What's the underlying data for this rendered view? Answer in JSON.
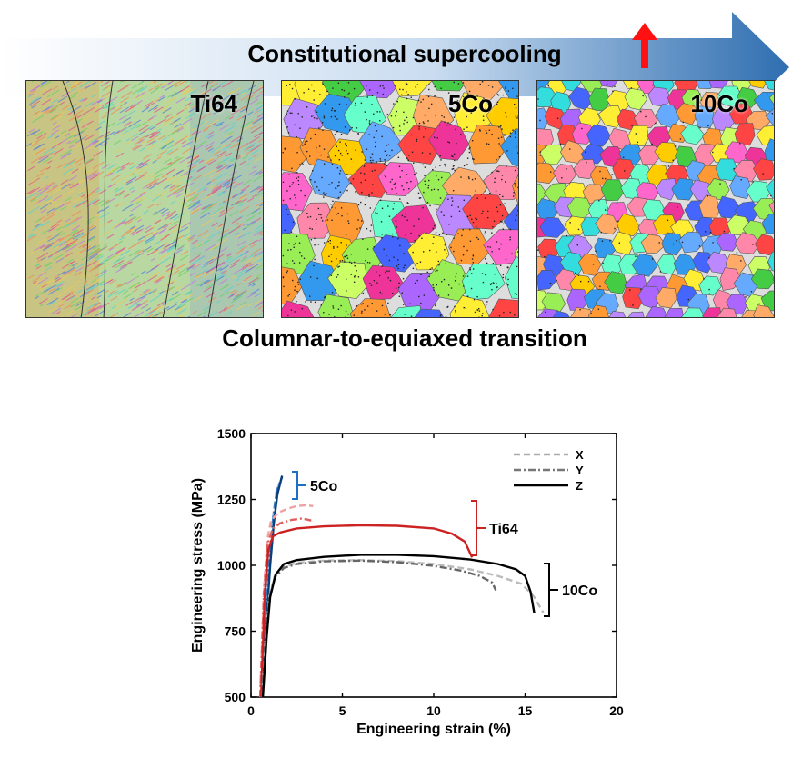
{
  "banner": {
    "title": "Constitutional supercooling",
    "gradient_start": "#ffffff",
    "gradient_end": "#2f6eb0",
    "indicator_icon": "red-up-arrow",
    "indicator_color": "#ff1111"
  },
  "panels": [
    {
      "label": "Ti64",
      "style": "columnar"
    },
    {
      "label": "5Co",
      "style": "coarse-equiaxed"
    },
    {
      "label": "10Co",
      "style": "fine-equiaxed"
    }
  ],
  "caption": "Columnar-to-equiaxed transition",
  "chart_data": {
    "type": "line",
    "title": "",
    "xlabel": "Engineering strain (%)",
    "ylabel": "Engineering stress (MPa)",
    "xlim": [
      0,
      20
    ],
    "ylim": [
      500,
      1500
    ],
    "xticks": [
      0,
      5,
      10,
      15,
      20
    ],
    "yticks": [
      500,
      750,
      1000,
      1250,
      1500
    ],
    "grid": false,
    "legend": {
      "position": "top-right",
      "entries": [
        {
          "label": "X",
          "dash": "dashed",
          "color": "#aaaaaa"
        },
        {
          "label": "Y",
          "dash": "dash-dot",
          "color": "#777777"
        },
        {
          "label": "Z",
          "dash": "solid",
          "color": "#000000"
        }
      ]
    },
    "groups": [
      {
        "label": "5Co",
        "bracket_color": "#1f6fc4"
      },
      {
        "label": "Ti64",
        "bracket_color": "#cc2222"
      },
      {
        "label": "10Co",
        "bracket_color": "#000000"
      }
    ],
    "series": [
      {
        "alloy": "5Co",
        "direction": "X",
        "color": "#8ab4de",
        "dash": "dashed",
        "x": [
          0.5,
          0.8,
          1.0,
          1.2,
          1.4,
          1.6
        ],
        "y": [
          500,
          800,
          1020,
          1180,
          1280,
          1320
        ]
      },
      {
        "alloy": "5Co",
        "direction": "Y",
        "color": "#3a78c0",
        "dash": "dash-dot",
        "x": [
          0.5,
          0.8,
          1.0,
          1.2,
          1.4,
          1.7
        ],
        "y": [
          500,
          790,
          1010,
          1170,
          1280,
          1335
        ]
      },
      {
        "alloy": "5Co",
        "direction": "Z",
        "color": "#0b3f7a",
        "dash": "solid",
        "x": [
          0.55,
          0.85,
          1.05,
          1.25,
          1.45,
          1.7
        ],
        "y": [
          500,
          790,
          1000,
          1160,
          1270,
          1340
        ]
      },
      {
        "alloy": "Ti64",
        "direction": "X",
        "color": "#f0a0a0",
        "dash": "dashed",
        "x": [
          0.5,
          0.7,
          0.9,
          1.1,
          1.5,
          2.0,
          2.5,
          3.0,
          3.4
        ],
        "y": [
          500,
          900,
          1100,
          1170,
          1200,
          1215,
          1225,
          1228,
          1225
        ]
      },
      {
        "alloy": "Ti64",
        "direction": "Y",
        "color": "#e06060",
        "dash": "dash-dot",
        "x": [
          0.5,
          0.7,
          0.9,
          1.2,
          1.6,
          2.2,
          2.8,
          3.3
        ],
        "y": [
          500,
          880,
          1080,
          1140,
          1160,
          1172,
          1178,
          1170
        ]
      },
      {
        "alloy": "Ti64",
        "direction": "Z",
        "color": "#cc2222",
        "dash": "solid",
        "x": [
          0.55,
          0.75,
          0.95,
          1.2,
          1.6,
          2.5,
          4.0,
          6.0,
          8.0,
          10.0,
          11.0,
          11.7,
          12.1
        ],
        "y": [
          500,
          880,
          1060,
          1110,
          1125,
          1140,
          1148,
          1152,
          1150,
          1140,
          1120,
          1090,
          1030
        ]
      },
      {
        "alloy": "10Co",
        "direction": "X",
        "color": "#bbbbbb",
        "dash": "dashed",
        "x": [
          0.6,
          0.8,
          1.0,
          1.3,
          1.8,
          2.5,
          4.0,
          6.0,
          8.0,
          10.0,
          12.0,
          13.5,
          14.8,
          15.5,
          16.0
        ],
        "y": [
          500,
          720,
          880,
          960,
          995,
          1010,
          1018,
          1020,
          1016,
          1005,
          985,
          960,
          930,
          880,
          820
        ]
      },
      {
        "alloy": "10Co",
        "direction": "Y",
        "color": "#666666",
        "dash": "dash-dot",
        "x": [
          0.6,
          0.8,
          1.0,
          1.3,
          1.8,
          2.5,
          4.0,
          6.0,
          8.0,
          10.0,
          11.5,
          12.5,
          13.2,
          13.4
        ],
        "y": [
          500,
          710,
          870,
          955,
          990,
          1005,
          1015,
          1018,
          1012,
          998,
          980,
          960,
          935,
          905
        ]
      },
      {
        "alloy": "10Co",
        "direction": "Z",
        "color": "#000000",
        "dash": "solid",
        "x": [
          0.65,
          0.85,
          1.05,
          1.35,
          1.8,
          2.5,
          4.0,
          6.0,
          8.0,
          10.0,
          12.0,
          13.5,
          14.5,
          15.0,
          15.3,
          15.5
        ],
        "y": [
          500,
          720,
          880,
          965,
          1005,
          1020,
          1032,
          1040,
          1040,
          1035,
          1022,
          1005,
          985,
          960,
          900,
          820
        ]
      }
    ]
  }
}
